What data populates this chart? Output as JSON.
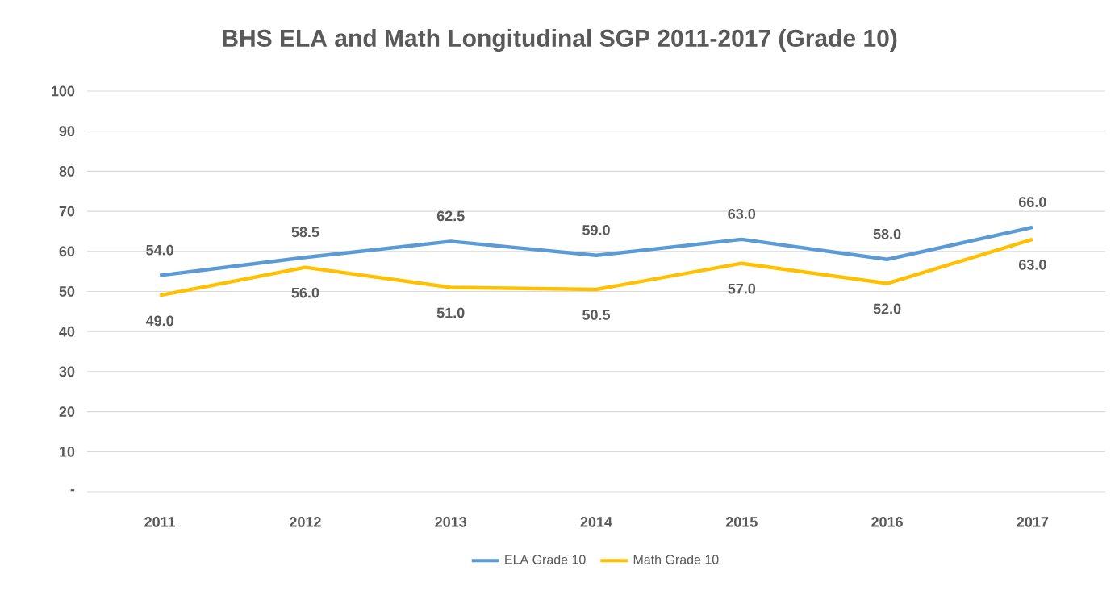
{
  "chart_data": {
    "type": "line",
    "title": "BHS ELA and Math Longitudinal  SGP 2011-2017 (Grade 10)",
    "categories": [
      "2011",
      "2012",
      "2013",
      "2014",
      "2015",
      "2016",
      "2017"
    ],
    "series": [
      {
        "name": "ELA Grade 10",
        "color": "#5b9bd5",
        "values": [
          54.0,
          58.5,
          62.5,
          59.0,
          63.0,
          58.0,
          66.0
        ],
        "value_labels": [
          "54.0",
          "58.5",
          "62.5",
          "59.0",
          "63.0",
          "58.0",
          "66.0"
        ]
      },
      {
        "name": "Math Grade 10",
        "color": "#ffc000",
        "values": [
          49.0,
          56.0,
          51.0,
          50.5,
          57.0,
          52.0,
          63.0
        ],
        "value_labels": [
          "49.0",
          "56.0",
          "51.0",
          "50.5",
          "57.0",
          "52.0",
          "63.0"
        ]
      }
    ],
    "ylim": [
      0,
      100
    ],
    "yticks": [
      {
        "value": 0,
        "label": "-"
      },
      10,
      20,
      30,
      40,
      50,
      60,
      70,
      80,
      90,
      100
    ],
    "grid": "y",
    "legend": "bottom",
    "marker": "none",
    "line_style": "solid"
  }
}
